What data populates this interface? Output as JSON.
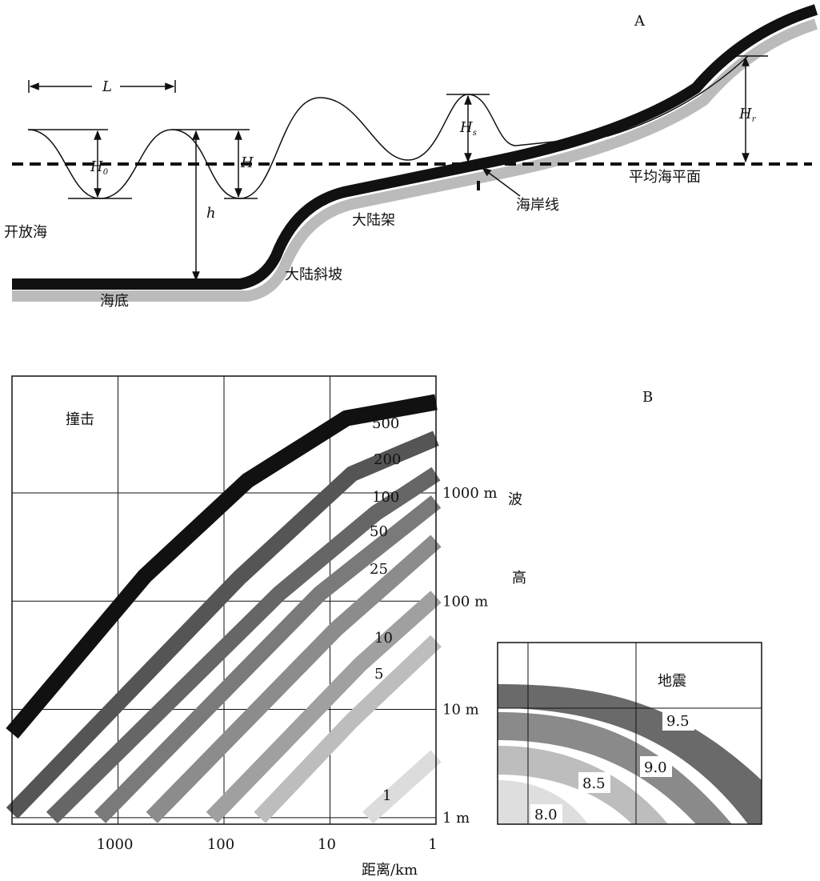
{
  "panel_a": {
    "label": "A",
    "L": "L",
    "H0": {
      "symbol": "H",
      "subscript": "0"
    },
    "H": "H",
    "h": "h",
    "Hs": {
      "symbol": "H",
      "subscript": "s"
    },
    "Hr": {
      "symbol": "H",
      "subscript": "r"
    },
    "open_sea": "开放海",
    "seafloor": "海底",
    "continental_slope": "大陆斜坡",
    "continental_shelf": "大陆架",
    "coastline": "海岸线",
    "mean_sea_level": "平均海平面"
  },
  "chart_data": {
    "type": "line",
    "panel_label": "B",
    "annotation": "撞击",
    "xlabel": "距离/km",
    "ylabel": [
      "波",
      "高"
    ],
    "log_x": true,
    "log_y": true,
    "grid": true,
    "xlim": [
      10000,
      1
    ],
    "ylim": [
      0.87,
      12000
    ],
    "xticks": [
      1000,
      100,
      10,
      1
    ],
    "yticks": [
      {
        "value": 1,
        "label": "1 m"
      },
      {
        "value": 10,
        "label": "10 m"
      },
      {
        "value": 100,
        "label": "100 m"
      },
      {
        "value": 1000,
        "label": "1000 m"
      }
    ],
    "series": [
      {
        "name": "500",
        "color": "#111111",
        "x": [
          10000,
          560,
          60,
          7,
          1
        ],
        "values": [
          6,
          170,
          1300,
          4900,
          6900
        ]
      },
      {
        "name": "200",
        "color": "#555555",
        "x": [
          10000,
          71,
          6.2,
          1
        ],
        "values": [
          1.1,
          166,
          1500,
          3200
        ]
      },
      {
        "name": "100",
        "color": "#666666",
        "x": [
          4200,
          30,
          3.7,
          1
        ],
        "values": [
          1,
          118,
          650,
          1500
        ]
      },
      {
        "name": "50",
        "color": "#7a7a7a",
        "x": [
          1480,
          12.4,
          1
        ],
        "values": [
          1,
          118,
          830
        ]
      },
      {
        "name": "25",
        "color": "#8c8c8c",
        "x": [
          480,
          8.8,
          1
        ],
        "values": [
          1,
          55,
          360
        ]
      },
      {
        "name": "10",
        "color": "#a0a0a0",
        "x": [
          130,
          5.2,
          1
        ],
        "values": [
          1,
          26,
          110
        ]
      },
      {
        "name": "5",
        "color": "#bdbdbd",
        "x": [
          46,
          6.2,
          1
        ],
        "values": [
          1,
          7.9,
          43
        ]
      },
      {
        "name": "1",
        "color": "#dcdcdc",
        "x": [
          4.4,
          1
        ],
        "values": [
          1,
          3.7
        ]
      }
    ]
  },
  "inset": {
    "title": "地震",
    "labels": [
      "9.5",
      "9.0",
      "8.5",
      "8.0"
    ]
  }
}
